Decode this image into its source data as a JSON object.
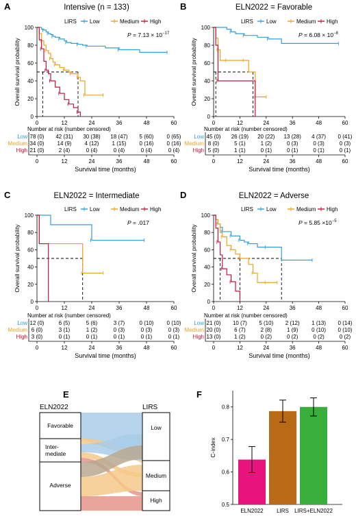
{
  "colors": {
    "low": "#2e9fd8",
    "medium": "#f0a020",
    "high": "#c0143c",
    "ref": "#000000",
    "f_eln": "#e8147e",
    "f_lirs": "#b86a14",
    "f_both": "#3aae3a",
    "flow_low": "#a9cce8",
    "flow_med": "#f6c98a",
    "flow_high": "#e5948a",
    "flow_mix": "#b8a890"
  },
  "panels": [
    {
      "letter": "A",
      "title": "Intensive (n = 133)",
      "pvalue": "P = 7.13 × 10",
      "pexp": "−17",
      "legend_title": "LIRS",
      "legend": [
        "Low",
        "Medium",
        "High"
      ],
      "ylabel": "Overall survival probability",
      "xlabel": "Survival time (months)",
      "xticks": [
        "0",
        "12",
        "24",
        "36",
        "48",
        "60"
      ],
      "yticks": [
        "0",
        "20",
        "40",
        "60",
        "80",
        "100"
      ],
      "risk_title": "Number at risk (number censored)",
      "risk_rows": [
        {
          "group": "Low",
          "values": [
            "78 (0)",
            "42 (31)",
            "30 (38)",
            "18 (47)",
            "5 (60)",
            "0 (65)"
          ]
        },
        {
          "group": "Medium",
          "values": [
            "34 (0)",
            "14 (9)",
            "4 (12)",
            "1 (15)",
            "0 (16)",
            "0 (16)"
          ]
        },
        {
          "group": "High",
          "values": [
            "21 (0)",
            "2 (4)",
            "0 (4)",
            "0 (4)",
            "0 (4)",
            "0 (4)"
          ]
        }
      ]
    },
    {
      "letter": "B",
      "title": "ELN2022 = Favorable",
      "pvalue": "P = 6.08 × 10",
      "pexp": "−8",
      "legend_title": "LIRS",
      "legend": [
        "Low",
        "Medium",
        "High"
      ],
      "ylabel": "Overall survival probability",
      "xlabel": "Survival time (months)",
      "xticks": [
        "0",
        "12",
        "24",
        "36",
        "48",
        "60"
      ],
      "yticks": [
        "0",
        "20",
        "40",
        "60",
        "80",
        "100"
      ],
      "risk_title": "Number at risk (number censored)",
      "risk_rows": [
        {
          "group": "Low",
          "values": [
            "45 (0)",
            "26 (19)",
            "20 (22)",
            "13 (28)",
            "4 (37)",
            "0 (41)"
          ]
        },
        {
          "group": "Medium",
          "values": [
            "8 (0)",
            "5 (1)",
            "1 (2)",
            "0 (3)",
            "0 (3)",
            "0 (3)"
          ]
        },
        {
          "group": "High",
          "values": [
            "5 (0)",
            "1 (1)",
            "0 (1)",
            "0 (1)",
            "0 (1)",
            "0 (1)"
          ]
        }
      ]
    },
    {
      "letter": "C",
      "title": "ELN2022 = Intermediate",
      "pvalue": "P = .017",
      "pexp": "",
      "legend_title": "LIRS",
      "legend": [
        "Low",
        "Medium",
        "High"
      ],
      "ylabel": "Overall survival probability",
      "xlabel": "Survival time (months)",
      "xticks": [
        "0",
        "12",
        "24",
        "36",
        "48",
        "60"
      ],
      "yticks": [
        "0",
        "20",
        "40",
        "60",
        "80",
        "100"
      ],
      "risk_title": "Number at risk (number censored)",
      "risk_rows": [
        {
          "group": "Low",
          "values": [
            "12 (0)",
            "6 (5)",
            "5 (6)",
            "3 (7)",
            "0 (10)",
            "0 (10)"
          ]
        },
        {
          "group": "Medium",
          "values": [
            "6 (0)",
            "3 (1)",
            "1 (2)",
            "0 (3)",
            "0 (3)",
            "0 (3)"
          ]
        },
        {
          "group": "High",
          "values": [
            "3 (0)",
            "0 (1)",
            "0 (1)",
            "0 (1)",
            "0 (1)",
            "0 (1)"
          ]
        }
      ]
    },
    {
      "letter": "D",
      "title": "ELN2022 = Adverse",
      "pvalue": "P = 5.85 ×10",
      "pexp": "−5",
      "legend_title": "LIRS",
      "legend": [
        "Low",
        "Medium",
        "High"
      ],
      "ylabel": "Overall survival probability",
      "xlabel": "Survival time (months)",
      "xticks": [
        "0",
        "12",
        "24",
        "36",
        "48",
        "60"
      ],
      "yticks": [
        "0",
        "20",
        "40",
        "60",
        "80",
        "100"
      ],
      "risk_title": "Number at risk (number censored)",
      "risk_rows": [
        {
          "group": "Low",
          "values": [
            "21 (0)",
            "10 (7)",
            "5 (10)",
            "2 (12)",
            "1 (13)",
            "0 (14)"
          ]
        },
        {
          "group": "Medium",
          "values": [
            "20 (0)",
            "6 (7)",
            "2 (8)",
            "1 (9)",
            "0 (10)",
            "0 (10)"
          ]
        },
        {
          "group": "High",
          "values": [
            "13 (0)",
            "1 (2)",
            "0 (2)",
            "0 (2)",
            "0 (2)",
            "0 (2)"
          ]
        }
      ]
    }
  ],
  "panel_e": {
    "letter": "E",
    "left_title": "ELN2022",
    "right_title": "LIRS",
    "left_nodes": [
      "Favorable",
      "Inter-",
      "mediate",
      "Adverse"
    ],
    "right_nodes": [
      "Low",
      "Medium",
      "High"
    ]
  },
  "panel_f": {
    "letter": "F",
    "ylabel": "C-index",
    "yticks": [
      "0.5",
      "0.6",
      "0.7",
      "0.8"
    ]
  },
  "chart_data": [
    {
      "type": "line",
      "title": "Intensive (n = 133)",
      "xlabel": "Survival time (months)",
      "ylabel": "Overall survival probability",
      "xlim": [
        0,
        60
      ],
      "ylim": [
        0,
        100
      ],
      "series": [
        {
          "name": "Low",
          "x": [
            0,
            2,
            3,
            4,
            5,
            6,
            7,
            8,
            10,
            12,
            13,
            15,
            18,
            20,
            22,
            30,
            36,
            45,
            57
          ],
          "y": [
            100,
            98,
            97,
            95,
            93,
            92,
            90,
            89,
            87,
            85,
            83,
            82,
            81,
            80,
            79,
            77,
            75,
            72,
            72
          ]
        },
        {
          "name": "Medium",
          "x": [
            0,
            1,
            2,
            3,
            4,
            5,
            6,
            7,
            8,
            10,
            12,
            14,
            15,
            17,
            18,
            19,
            21,
            29
          ],
          "y": [
            100,
            93,
            85,
            80,
            74,
            71,
            65,
            61,
            58,
            55,
            52,
            50,
            48,
            48,
            44,
            40,
            24,
            24
          ]
        },
        {
          "name": "High",
          "x": [
            0,
            1,
            2,
            3,
            4,
            5,
            6,
            8,
            10,
            12,
            14,
            16,
            18,
            19
          ],
          "y": [
            100,
            86,
            76,
            62,
            52,
            48,
            40,
            33,
            26,
            19,
            14,
            10,
            5,
            0
          ]
        }
      ],
      "medians": [
        2.5,
        18
      ]
    },
    {
      "type": "line",
      "title": "ELN2022 = Favorable",
      "xlabel": "Survival time (months)",
      "ylabel": "Overall survival probability",
      "xlim": [
        0,
        60
      ],
      "ylim": [
        0,
        100
      ],
      "series": [
        {
          "name": "Low",
          "x": [
            0,
            6,
            8,
            10,
            14,
            20,
            25,
            31,
            57
          ],
          "y": [
            100,
            98,
            95,
            93,
            91,
            89,
            87,
            82,
            82
          ]
        },
        {
          "name": "Medium",
          "x": [
            0,
            1,
            2,
            3,
            6,
            12,
            14,
            16,
            19,
            24
          ],
          "y": [
            100,
            88,
            75,
            63,
            63,
            63,
            63,
            50,
            22,
            22
          ]
        },
        {
          "name": "High",
          "x": [
            0,
            1,
            2,
            18,
            19
          ],
          "y": [
            100,
            80,
            40,
            40,
            0
          ]
        }
      ],
      "medians": [
        1,
        18
      ]
    },
    {
      "type": "line",
      "title": "ELN2022 = Intermediate",
      "xlabel": "Survival time (months)",
      "ylabel": "Overall survival probability",
      "xlim": [
        0,
        60
      ],
      "ylim": [
        0,
        100
      ],
      "series": [
        {
          "name": "Low",
          "x": [
            0,
            6,
            24,
            47
          ],
          "y": [
            100,
            89,
            71,
            71
          ]
        },
        {
          "name": "Medium",
          "x": [
            0,
            1,
            20,
            29
          ],
          "y": [
            100,
            67,
            33,
            33
          ]
        },
        {
          "name": "High",
          "x": [
            0,
            1,
            5
          ],
          "y": [
            100,
            67,
            0
          ]
        }
      ],
      "medians": [
        20
      ]
    },
    {
      "type": "line",
      "title": "ELN2022 = Adverse",
      "xlabel": "Survival time (months)",
      "ylabel": "Overall survival probability",
      "xlim": [
        0,
        60
      ],
      "ylim": [
        0,
        100
      ],
      "series": [
        {
          "name": "Low",
          "x": [
            0,
            1,
            2,
            3,
            4,
            6,
            8,
            10,
            12,
            14,
            16,
            20,
            24,
            31,
            45
          ],
          "y": [
            100,
            95,
            90,
            86,
            81,
            81,
            76,
            76,
            71,
            69,
            67,
            63,
            63,
            48,
            48
          ]
        },
        {
          "name": "Medium",
          "x": [
            0,
            1,
            2,
            3,
            4,
            6,
            8,
            10,
            12,
            16,
            18,
            20,
            24,
            29
          ],
          "y": [
            100,
            95,
            90,
            80,
            75,
            65,
            60,
            55,
            50,
            43,
            33,
            22,
            22,
            22
          ]
        },
        {
          "name": "High",
          "x": [
            0,
            1,
            2,
            3,
            4,
            6,
            8,
            10,
            12
          ],
          "y": [
            100,
            85,
            69,
            54,
            38,
            31,
            23,
            12,
            0
          ]
        }
      ],
      "medians": [
        3,
        12,
        31
      ]
    },
    {
      "type": "bar",
      "xlabel": "",
      "ylabel": "C-index",
      "categories": [
        "ELN2022",
        "LIRS",
        "LIRS+ELN2022"
      ],
      "values": [
        0.638,
        0.787,
        0.8
      ],
      "ci_low": [
        0.598,
        0.753,
        0.772
      ],
      "ci_high": [
        0.678,
        0.821,
        0.828
      ],
      "ylim": [
        0.5,
        0.85
      ]
    }
  ]
}
